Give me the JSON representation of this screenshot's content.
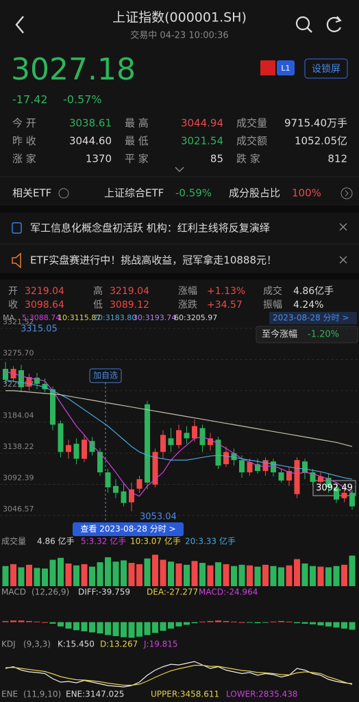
{
  "header": {
    "title": "上证指数(000001.SH)",
    "subtitle": "交易中 04-23 10:00:36"
  },
  "quote": {
    "price": "3027.18",
    "change": "-17.42",
    "change_pct": "-0.57%",
    "level": "L1",
    "lock_button": "设锁屏"
  },
  "stats": [
    [
      [
        "今 开",
        "3038.61"
      ],
      [
        "最 高",
        "3044.94"
      ],
      [
        "成交量",
        "9715.40万手"
      ]
    ],
    [
      [
        "昨 收",
        "3044.60"
      ],
      [
        "最 低",
        "3021.54"
      ],
      [
        "成交额",
        "1052.05亿"
      ]
    ],
    [
      [
        "涨 家",
        "1370"
      ],
      [
        "平 家",
        "85"
      ],
      [
        "跌 家",
        "812"
      ]
    ]
  ],
  "etf": {
    "label": "相关ETF",
    "name": "上证综合ETF",
    "change": "-0.59%",
    "share_label": "成分股占比",
    "share": "100%"
  },
  "news": [
    "军工信息化概念盘初活跃 机构：红利主线将反复演绎",
    "ETF实盘赛进行中！挑战高收益，冠军拿走10888元！"
  ],
  "kline_info": [
    [
      [
        "开",
        "3219.04"
      ],
      [
        "高",
        "3219.04"
      ],
      [
        "涨幅",
        "+1.13%"
      ],
      [
        "成交",
        "4.86亿手"
      ]
    ],
    [
      [
        "收",
        "3098.64"
      ],
      [
        "低",
        "3089.12"
      ],
      [
        "涨跌",
        "+34.57"
      ],
      [
        "振幅",
        "4.24%"
      ]
    ]
  ],
  "ma": {
    "label": "MA",
    "items": [
      "5:3088.74",
      "10:3115.87",
      "20:3183.80",
      "30:3193.74",
      "60:3205.97"
    ],
    "date_link": "2023-08-28 分时 >",
    "since_label": "至今涨幅",
    "since_value": "-1.20%"
  },
  "annotations": {
    "high": "3315.05",
    "low": "3053.04",
    "last": "3092.49",
    "add_watch": "加自选",
    "view_link": "查看 2023-08-28 分时 >"
  },
  "volume_info": {
    "label": "成交量",
    "items": [
      "4.86 亿手",
      "5:3.32 亿手",
      "10:3.07 亿手",
      "20:3.33 亿手"
    ]
  },
  "macd_info": {
    "label": "MACD",
    "params": "(12,26,9)",
    "items": [
      "DIFF:-39.759",
      "DEA:-27.277",
      "MACD:-24.964"
    ]
  },
  "kdj_info": {
    "label": "KDJ",
    "params": "(9,3,3)",
    "items": [
      "K:15.450",
      "D:13.267",
      "J:19.815"
    ]
  },
  "ene_info": {
    "label": "ENE",
    "params": "(11,9,10)",
    "items": [
      "ENE:3147.025",
      "UPPER:3458.611",
      "LOWER:2835.438"
    ]
  },
  "chart_data": [
    {
      "type": "candlestick",
      "up_color": "#f04848",
      "down_color": "#2db55d",
      "ylim": [
        3046.57,
        3321.52
      ],
      "yticks": [
        3321.52,
        {
          "value": 3275.7,
          "label": "3275.70"
        },
        3229.87,
        3184.04,
        3138.22,
        3092.39,
        3046.57
      ],
      "grid": true,
      "candles": [
        [
          3262,
          3246,
          3272,
          3240
        ],
        [
          3248,
          3262,
          3266,
          3244
        ],
        [
          3260,
          3235,
          3268,
          3228
        ],
        [
          3236,
          3250,
          3255,
          3230
        ],
        [
          3249,
          3240,
          3256,
          3232
        ],
        [
          3240,
          3232,
          3248,
          3228
        ],
        [
          3232,
          3180,
          3236,
          3172
        ],
        [
          3182,
          3140,
          3186,
          3132
        ],
        [
          3140,
          3150,
          3158,
          3130
        ],
        [
          3152,
          3130,
          3160,
          3122
        ],
        [
          3130,
          3158,
          3165,
          3125
        ],
        [
          3156,
          3140,
          3162,
          3135
        ],
        [
          3140,
          3110,
          3145,
          3105
        ],
        [
          3110,
          3088,
          3115,
          3080
        ],
        [
          3090,
          3080,
          3100,
          3072
        ],
        [
          3082,
          3065,
          3095,
          3060
        ],
        [
          3066,
          3085,
          3095,
          3053.04
        ],
        [
          3086,
          3100,
          3105,
          3080
        ],
        [
          3210,
          3095,
          3215,
          3085
        ],
        [
          3092,
          3140,
          3145,
          3088
        ],
        [
          3140,
          3165,
          3172,
          3130
        ],
        [
          3160,
          3150,
          3175,
          3140
        ],
        [
          3150,
          3172,
          3180,
          3145
        ],
        [
          3168,
          3160,
          3178,
          3152
        ],
        [
          3160,
          3178,
          3188,
          3155
        ],
        [
          3175,
          3150,
          3180,
          3140
        ],
        [
          3150,
          3160,
          3168,
          3142
        ],
        [
          3158,
          3120,
          3162,
          3115
        ],
        [
          3122,
          3140,
          3148,
          3118
        ],
        [
          3138,
          3128,
          3145,
          3120
        ],
        [
          3128,
          3110,
          3135,
          3102
        ],
        [
          3110,
          3125,
          3130,
          3105
        ],
        [
          3122,
          3112,
          3130,
          3108
        ],
        [
          3112,
          3128,
          3132,
          3105
        ],
        [
          3126,
          3110,
          3130,
          3104
        ],
        [
          3110,
          3098,
          3115,
          3095
        ],
        [
          3098,
          3112,
          3118,
          3090
        ],
        [
          3078,
          3128,
          3132,
          3072
        ],
        [
          3126,
          3110,
          3130,
          3100
        ],
        [
          3110,
          3096,
          3115,
          3090
        ],
        [
          3096,
          3104,
          3110,
          3090
        ],
        [
          3102,
          3088,
          3108,
          3080
        ],
        [
          3088,
          3070,
          3095,
          3065
        ],
        [
          3072,
          3080,
          3085,
          3066
        ],
        [
          3080,
          3060,
          3084,
          3055
        ]
      ],
      "series": [
        {
          "color": "#d040e0",
          "values": [
            3258,
            3255,
            3252,
            3248,
            3247,
            3244,
            3230,
            3212,
            3195,
            3178,
            3165,
            3150,
            3138,
            3125,
            3110,
            3094,
            3080,
            3075,
            3090,
            3100,
            3110,
            3128,
            3140,
            3150,
            3160,
            3162,
            3158,
            3152,
            3145,
            3138,
            3130,
            3125,
            3120,
            3118,
            3120,
            3115,
            3110,
            3108,
            3110,
            3108,
            3104,
            3100,
            3095,
            3088,
            3080
          ]
        },
        {
          "color": "#4aa8e0",
          "values": [
            3245,
            3244,
            3242,
            3240,
            3238,
            3235,
            3230,
            3224,
            3218,
            3210,
            3202,
            3194,
            3186,
            3178,
            3168,
            3158,
            3148,
            3140,
            3135,
            3132,
            3130,
            3128,
            3128,
            3128,
            3130,
            3132,
            3134,
            3135,
            3134,
            3132,
            3130,
            3128,
            3126,
            3124,
            3122,
            3120,
            3118,
            3116,
            3115,
            3113,
            3111,
            3108,
            3105,
            3102,
            3100
          ]
        },
        {
          "color": "#c8c0b0",
          "values": [
            3230,
            3230,
            3229,
            3228,
            3227,
            3226,
            3225,
            3224,
            3222,
            3220,
            3218,
            3216,
            3214,
            3212,
            3210,
            3208,
            3206,
            3204,
            3202,
            3200,
            3198,
            3196,
            3194,
            3192,
            3190,
            3188,
            3186,
            3184,
            3182,
            3180,
            3178,
            3176,
            3174,
            3172,
            3170,
            3168,
            3166,
            3164,
            3162,
            3160,
            3158,
            3156,
            3154,
            3151,
            3148
          ]
        }
      ]
    },
    {
      "type": "volume",
      "ylim": [
        0,
        6
      ],
      "values": [
        3.2,
        3.5,
        3.0,
        3.4,
        2.9,
        2.8,
        4.2,
        4.5,
        3.6,
        3.3,
        3.5,
        3.1,
        3.8,
        4.6,
        3.9,
        4.1,
        3.7,
        3.5,
        4.4,
        5.0,
        4.2,
        3.9,
        3.6,
        3.4,
        4.0,
        3.7,
        3.3,
        3.8,
        3.5,
        3.2,
        3.4,
        3.3,
        3.1,
        3.4,
        3.2,
        3.0,
        3.3,
        4.3,
        3.6,
        3.2,
        3.1,
        3.0,
        3.2,
        3.4,
        4.86
      ]
    },
    {
      "type": "macd",
      "ylim": [
        -35,
        35
      ],
      "values": [
        2,
        3,
        3,
        2,
        1,
        0,
        -3,
        -8,
        -12,
        -15,
        -17,
        -19,
        -21,
        -24,
        -26,
        -28,
        -29,
        -27,
        -24,
        -20,
        -16,
        -12,
        -8,
        -5,
        -2,
        1,
        2,
        3,
        2,
        1,
        0,
        -1,
        -2,
        -1,
        1,
        2,
        1,
        -2,
        -3,
        -4,
        -6,
        -8,
        -10,
        -12,
        -14
      ]
    },
    {
      "type": "kdj",
      "ylim": [
        0,
        100
      ],
      "series": [
        {
          "color": "#f0f0f0",
          "values": [
            60,
            65,
            55,
            50,
            48,
            45,
            30,
            20,
            22,
            18,
            25,
            20,
            15,
            10,
            8,
            6,
            10,
            20,
            40,
            55,
            65,
            72,
            70,
            75,
            80,
            70,
            60,
            65,
            55,
            50,
            45,
            48,
            40,
            45,
            42,
            35,
            40,
            60,
            55,
            45,
            40,
            28,
            22,
            18,
            15.45
          ]
        },
        {
          "color": "#e8d24a",
          "values": [
            62,
            63,
            60,
            57,
            54,
            51,
            44,
            36,
            31,
            27,
            26,
            24,
            21,
            17,
            14,
            11,
            11,
            14,
            23,
            34,
            44,
            53,
            59,
            64,
            69,
            69,
            66,
            66,
            62,
            58,
            54,
            52,
            48,
            47,
            45,
            42,
            41,
            47,
            50,
            48,
            45,
            35,
            28,
            20,
            13.267
          ]
        }
      ]
    }
  ]
}
